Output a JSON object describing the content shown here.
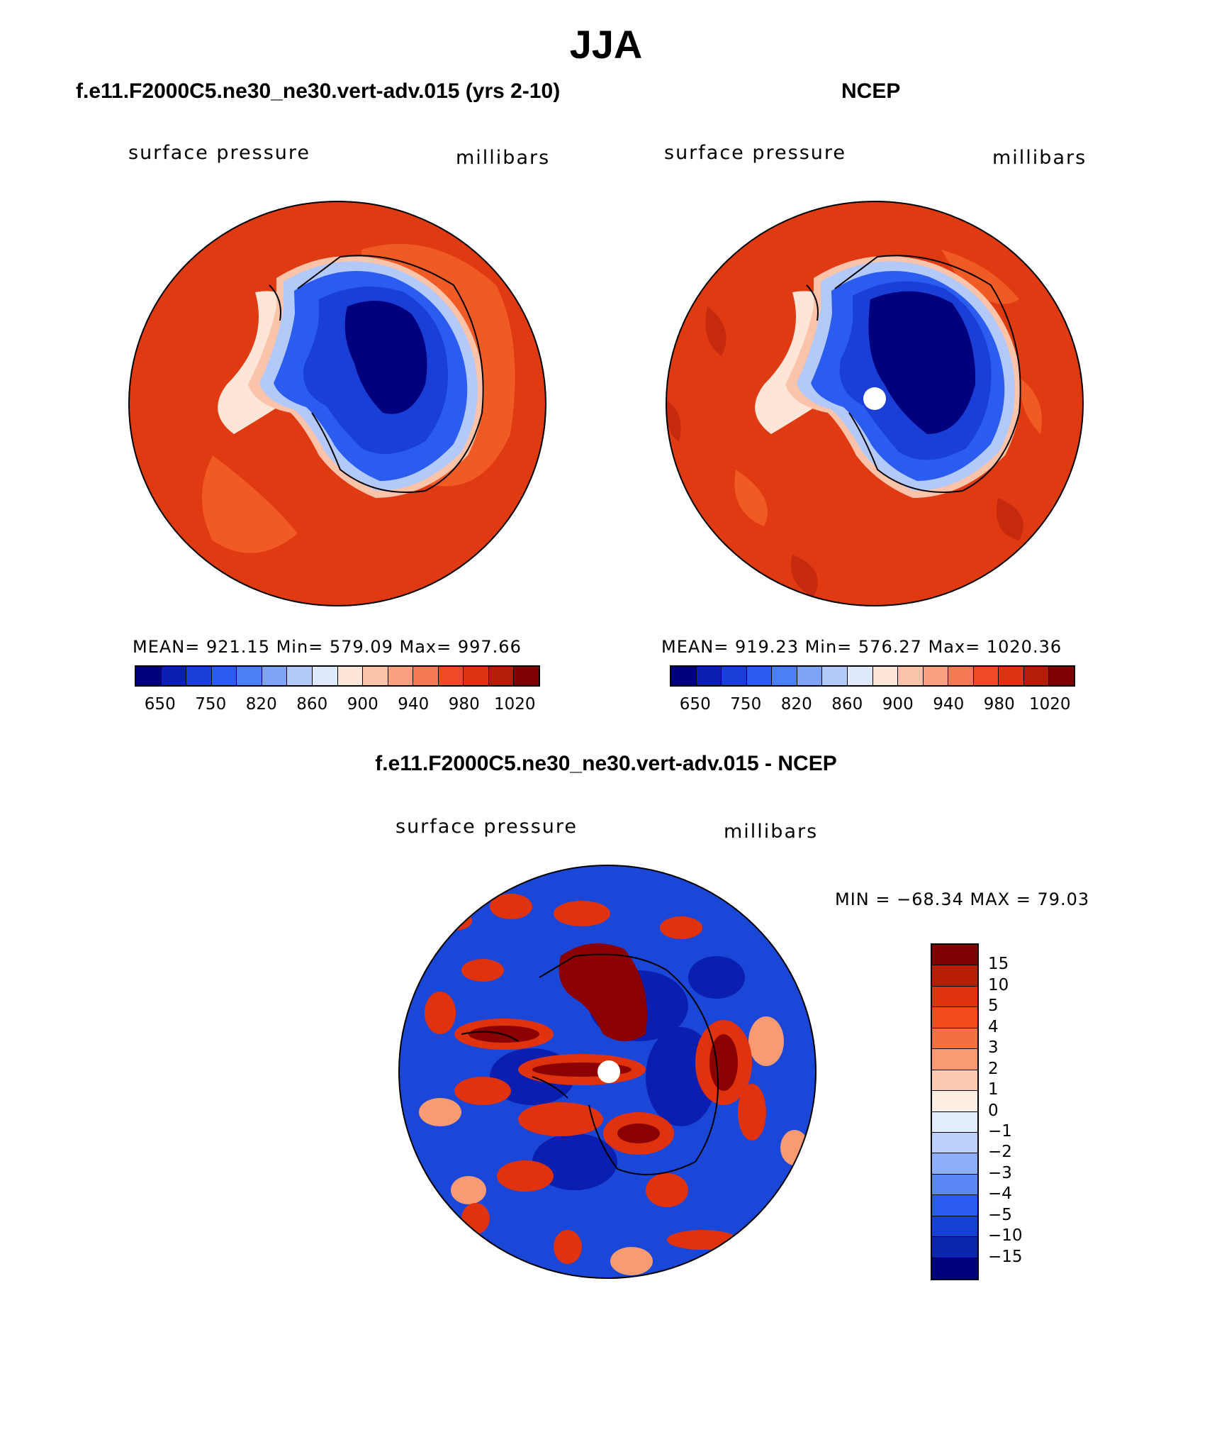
{
  "title": "JJA",
  "panels": [
    {
      "title": "f.e11.F2000C5.ne30_ne30.vert-adv.015 (yrs 2-10)",
      "left_label": "surface pressure",
      "right_label": "millibars",
      "stats": "MEAN=  921.15    Min=  579.09    Max=  997.66"
    },
    {
      "title": "NCEP",
      "left_label": "surface pressure",
      "right_label": "millibars",
      "stats": "MEAN=  919.23    Min=  576.27    Max=  1020.36"
    },
    {
      "title": "f.e11.F2000C5.ne30_ne30.vert-adv.015 - NCEP",
      "left_label": "surface pressure",
      "right_label": "millibars",
      "stats": "MIN  =  −68.34  MAX  =    79.03"
    }
  ],
  "abs_colorbar": {
    "colors": [
      "#00007f",
      "#0a1fb0",
      "#1a3fd6",
      "#2b5cf0",
      "#4a7ff5",
      "#7ea3f7",
      "#b3c9fa",
      "#dfe9fd",
      "#fde6d8",
      "#fbc4aa",
      "#f8a07f",
      "#f47a54",
      "#ee4a25",
      "#dd3311",
      "#b41d0a",
      "#7f0000"
    ],
    "ticks": [
      "650",
      "750",
      "820",
      "860",
      "900",
      "940",
      "980",
      "1020"
    ]
  },
  "diff_colorbar": {
    "colors": [
      "#7f0000",
      "#b81d06",
      "#e0320c",
      "#f24c1e",
      "#f57040",
      "#f89a72",
      "#fbcab0",
      "#fdeee4",
      "#e3edfd",
      "#bcd0fb",
      "#8eaef8",
      "#5b88f4",
      "#2b5cf0",
      "#163fd4",
      "#0a27ab",
      "#00007f"
    ],
    "ticks": [
      "15",
      "10",
      "5",
      "4",
      "3",
      "2",
      "1",
      "0",
      "−1",
      "−2",
      "−3",
      "−4",
      "−5",
      "−10",
      "−15"
    ]
  },
  "map_colors": {
    "ocean": "#e03a12",
    "ocean_high": "#f05a25",
    "ocean_dark": "#c52a0e",
    "coast_mid": "#fbc4aa",
    "coast_light": "#fde6d8",
    "ice_edge": "#b3c9fa",
    "ice_mid": "#2b5cf0",
    "ice_deep": "#1a3fd6",
    "ice_core": "#00007f",
    "diff_bg": "#1a47d8",
    "diff_neg": "#0a1fb0",
    "diff_pos": "#e0320c",
    "diff_pos_strong": "#8b0000"
  }
}
